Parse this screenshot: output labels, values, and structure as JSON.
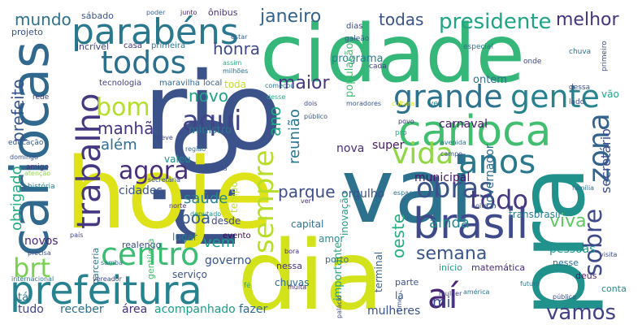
{
  "words": [
    {
      "text": "rio",
      "color": "#3b528b"
    },
    {
      "text": "hoje",
      "color": "#dde318"
    },
    {
      "text": "vai",
      "color": "#2c728e"
    },
    {
      "text": "cidade",
      "color": "#35b779"
    },
    {
      "text": "dia",
      "color": "#d2e21b"
    },
    {
      "text": "pra",
      "color": "#21918c"
    },
    {
      "text": "prefeitura",
      "color": "#26828e"
    },
    {
      "text": "cariocas",
      "color": "#31688e"
    },
    {
      "text": "parabéns",
      "color": "#2a788e"
    },
    {
      "text": "carioca",
      "color": "#42be71"
    },
    {
      "text": "brasil",
      "color": "#3e4a89"
    },
    {
      "text": "obras",
      "color": "#3b528b"
    },
    {
      "text": "aí",
      "color": "#482677"
    },
    {
      "text": "todos",
      "color": "#2d708e"
    },
    {
      "text": "anos",
      "color": "#2a788e"
    },
    {
      "text": "trabalho",
      "color": "#453781"
    },
    {
      "text": "grande",
      "color": "#2c728e"
    },
    {
      "text": "gente",
      "color": "#26828e"
    },
    {
      "text": "centro",
      "color": "#3dbc74"
    },
    {
      "text": "vida",
      "color": "#90d743"
    },
    {
      "text": "aqui",
      "color": "#414487"
    },
    {
      "text": "agora",
      "color": "#472d7b"
    },
    {
      "text": "bom",
      "color": "#b5de2b"
    },
    {
      "text": "zona",
      "color": "#33638d"
    },
    {
      "text": "todo",
      "color": "#443983"
    },
    {
      "text": "sempre",
      "color": "#b8de29"
    },
    {
      "text": "vamos",
      "color": "#424086"
    },
    {
      "text": "sobre",
      "color": "#3e4a89"
    },
    {
      "text": "brt",
      "color": "#7ad151"
    },
    {
      "text": "semana",
      "color": "#3a548c"
    },
    {
      "text": "presidente",
      "color": "#20a486"
    },
    {
      "text": "janeiro",
      "color": "#33638d"
    },
    {
      "text": "todas",
      "color": "#3b528b"
    },
    {
      "text": "melhor",
      "color": "#46337e"
    },
    {
      "text": "maior",
      "color": "#453781"
    },
    {
      "text": "honra",
      "color": "#3f4889"
    },
    {
      "text": "prefeito",
      "color": "#39568c"
    },
    {
      "text": "mundo",
      "color": "#2d708e"
    },
    {
      "text": "manhã",
      "color": "#46327e"
    },
    {
      "text": "novo",
      "color": "#1fa187"
    },
    {
      "text": "além",
      "color": "#2e6e8e"
    },
    {
      "text": "saúde",
      "color": "#25848e"
    },
    {
      "text": "boa",
      "color": "#38598c"
    },
    {
      "text": "vem",
      "color": "#1e9b8a"
    },
    {
      "text": "parque",
      "color": "#3e4c8a"
    },
    {
      "text": "reunião",
      "color": "#2a768e"
    },
    {
      "text": "ano",
      "color": "#21a585"
    },
    {
      "text": "ainda",
      "color": "#23898e"
    },
    {
      "text": "viva",
      "color": "#5ec962"
    },
    {
      "text": "mil",
      "color": "#3e4989"
    },
    {
      "text": "oeste",
      "color": "#26ad81"
    },
    {
      "text": "secretário",
      "color": "#3e4c8a"
    },
    {
      "text": "obrigado",
      "color": "#27ad81"
    },
    {
      "text": "nova",
      "color": "#472c7a"
    },
    {
      "text": "super",
      "color": "#481668"
    },
    {
      "text": "carnaval",
      "color": "#48186a"
    },
    {
      "text": "orgulho",
      "color": "#3b528b"
    },
    {
      "text": "municipal",
      "color": "#481467"
    },
    {
      "text": "novos",
      "color": "#482878"
    },
    {
      "text": "governo",
      "color": "#39558c"
    },
    {
      "text": "cidades",
      "color": "#3a538b"
    },
    {
      "text": "pessoas",
      "color": "#1f948c"
    },
    {
      "text": "receber",
      "color": "#2d708e"
    },
    {
      "text": "área",
      "color": "#46307e"
    },
    {
      "text": "acompanhado",
      "color": "#1e9c89"
    },
    {
      "text": "fazer",
      "color": "#2f6c8e"
    },
    {
      "text": "tudo",
      "color": "#3f4788"
    },
    {
      "text": "mulheres",
      "color": "#3b518b"
    },
    {
      "text": "tá",
      "color": "#2b748e"
    },
    {
      "text": "governador",
      "color": "#2f6b8e"
    },
    {
      "text": "importante",
      "color": "#22a884"
    },
    {
      "text": "ontem",
      "color": "#2e6f8e"
    },
    {
      "text": "programa",
      "color": "#277f8e"
    },
    {
      "text": "população",
      "color": "#44bf70"
    },
    {
      "text": "toda",
      "color": "#c2df23"
    },
    {
      "text": "ministro",
      "color": "#2a788e"
    },
    {
      "text": "valeu",
      "color": "#218e8d"
    },
    {
      "text": "tempo",
      "color": "#c0df25"
    },
    {
      "text": "desde",
      "color": "#3f4889"
    },
    {
      "text": "lugar",
      "color": "#287c8e"
    },
    {
      "text": "capital",
      "color": "#2c728e"
    },
    {
      "text": "inovação",
      "color": "#1f9e89"
    },
    {
      "text": "terminal",
      "color": "#34618d"
    },
    {
      "text": "transbrasil",
      "color": "#287d8e"
    },
    {
      "text": "amor",
      "color": "#228d8d"
    },
    {
      "text": "chuvas",
      "color": "#2f6c8e"
    },
    {
      "text": "serviço",
      "color": "#3b528b"
    },
    {
      "text": "parceria",
      "color": "#2a778e"
    },
    {
      "text": "evento",
      "color": "#440154"
    },
    {
      "text": "gentileza",
      "color": "#4ac16d"
    },
    {
      "text": "realengo",
      "color": "#3d4d8a"
    },
    {
      "text": "nessa",
      "color": "#46327e"
    },
    {
      "text": "porto",
      "color": "#2f6b8e"
    },
    {
      "text": "parte",
      "color": "#3b528b"
    },
    {
      "text": "início",
      "color": "#1fa188"
    },
    {
      "text": "matemática",
      "color": "#472a7a"
    },
    {
      "text": "nesse",
      "color": "#2e6d8e"
    },
    {
      "text": "deus",
      "color": "#481d6f"
    },
    {
      "text": "conta",
      "color": "#24878e"
    },
    {
      "text": "sábado",
      "color": "#3a548c"
    },
    {
      "text": "projeto",
      "color": "#3b518b"
    },
    {
      "text": "incrível",
      "color": "#424086"
    },
    {
      "text": "casa",
      "color": "#46337e"
    },
    {
      "text": "primeira",
      "color": "#2d718e"
    },
    {
      "text": "tecnologia",
      "color": "#433e85"
    },
    {
      "text": "maravilha",
      "color": "#31678e"
    },
    {
      "text": "local",
      "color": "#365c8d"
    },
    {
      "text": "ônibus",
      "color": "#46327e"
    },
    {
      "text": "junto",
      "color": "#481a6c"
    },
    {
      "text": "poder",
      "color": "#33638d"
    },
    {
      "text": "estar",
      "color": "#34618d"
    },
    {
      "text": "dias",
      "color": "#3f4788"
    },
    {
      "text": "galeão",
      "color": "#39568c"
    },
    {
      "text": "especial",
      "color": "#2c738e"
    },
    {
      "text": "chuva",
      "color": "#2d708e"
    },
    {
      "text": "primeiro",
      "color": "#3d4e8a"
    },
    {
      "text": "onde",
      "color": "#3f4788"
    },
    {
      "text": "cada",
      "color": "#433d84"
    },
    {
      "text": "vão",
      "color": "#22a884"
    },
    {
      "text": "assim",
      "color": "#27ad81"
    },
    {
      "text": "milhões",
      "color": "#2e6e8e"
    },
    {
      "text": "começou",
      "color": "#2a778e"
    },
    {
      "text": "desse",
      "color": "#22a785"
    },
    {
      "text": "dessa",
      "color": "#3b528b"
    },
    {
      "text": "lado",
      "color": "#3c4f8a"
    },
    {
      "text": "rede",
      "color": "#433e85"
    },
    {
      "text": "educação",
      "color": "#38588c"
    },
    {
      "text": "amigo",
      "color": "#46307e"
    },
    {
      "text": "história",
      "color": "#277f8e"
    },
    {
      "text": "dois",
      "color": "#3f4788"
    },
    {
      "text": "público",
      "color": "#3a538b"
    },
    {
      "text": "moradores",
      "color": "#38598c"
    },
    {
      "text": "cultura",
      "color": "#d8e219"
    },
    {
      "text": "vez",
      "color": "#23898e"
    },
    {
      "text": "povo",
      "color": "#46327e"
    },
    {
      "text": "pro",
      "color": "#25ac82"
    },
    {
      "text": "avenida",
      "color": "#2b748e"
    },
    {
      "text": "campo",
      "color": "#3b528b"
    },
    {
      "text": "região",
      "color": "#2f6b8e"
    },
    {
      "text": "breve",
      "color": "#3f4788"
    },
    {
      "text": "alegria",
      "color": "#3d4d8a"
    },
    {
      "text": "secretária",
      "color": "#3b518b"
    },
    {
      "text": "ver",
      "color": "#472d7b"
    },
    {
      "text": "família",
      "color": "#2e6e8e"
    },
    {
      "text": "espaço",
      "color": "#2c718e"
    },
    {
      "text": "noite",
      "color": "#3b528b"
    },
    {
      "text": "norte",
      "color": "#46307e"
    },
    {
      "text": "deputado",
      "color": "#21918c"
    },
    {
      "text": "país",
      "color": "#3f4788"
    },
    {
      "text": "visita",
      "color": "#3e4c8a"
    },
    {
      "text": "internacional",
      "color": "#2e6f8e"
    },
    {
      "text": "precisa",
      "color": "#3c4f8a"
    },
    {
      "text": "samba",
      "color": "#2c718e"
    },
    {
      "text": "vereador",
      "color": "#3f4889"
    },
    {
      "text": "bora",
      "color": "#46337e"
    },
    {
      "text": "lá",
      "color": "#3a538b"
    },
    {
      "text": "fé",
      "color": "#22a884"
    },
    {
      "text": "muita",
      "color": "#482475"
    },
    {
      "text": "mulher",
      "color": "#433e85"
    },
    {
      "text": "pública",
      "color": "#3d4d8a"
    },
    {
      "text": "américa",
      "color": "#2b748e"
    },
    {
      "text": "futuro",
      "color": "#2a788e"
    },
    {
      "text": "time",
      "color": "#38598c"
    },
    {
      "text": "palácio",
      "color": "#3f4788"
    },
    {
      "text": "domingo",
      "color": "#3b518b"
    },
    {
      "text": "atenção",
      "color": "#8fd744"
    }
  ]
}
